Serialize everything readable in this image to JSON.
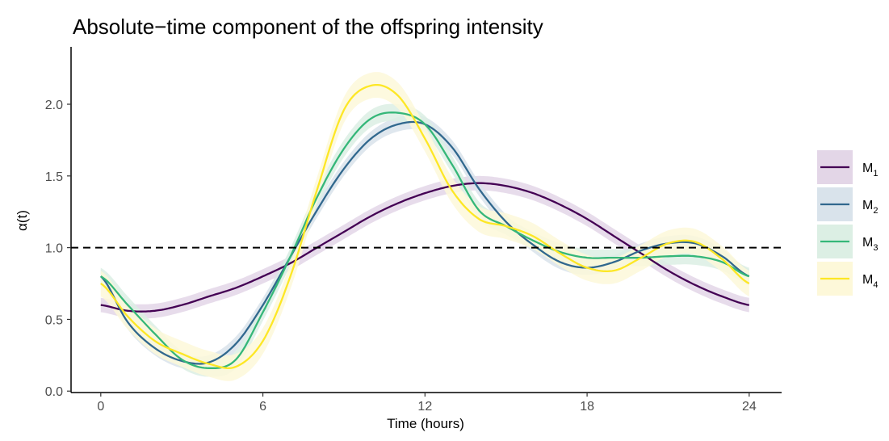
{
  "chart_data": {
    "type": "line",
    "title": "Absolute−time component of the offspring intensity",
    "xlabel": "Time (hours)",
    "ylabel": "α(t)",
    "xlim": [
      -1.1,
      25.2
    ],
    "ylim": [
      -0.01,
      2.4
    ],
    "x_ticks": [
      0,
      6,
      12,
      18,
      24
    ],
    "y_ticks": [
      0.0,
      0.5,
      1.0,
      1.5,
      2.0
    ],
    "y_tick_labels": [
      "0.0",
      "0.5",
      "1.0",
      "1.5",
      "2.0"
    ],
    "reference_line": {
      "y": 1.0,
      "style": "dashed",
      "color": "#000000"
    },
    "grid": false,
    "legend_position": "right",
    "series": [
      {
        "name": "M1",
        "label_main": "M",
        "label_sub": "1",
        "color": "#440154",
        "band_color": "#e3d6e7",
        "x": [
          0,
          1,
          2,
          3,
          4,
          5,
          6,
          7,
          8,
          9,
          10,
          11,
          12,
          13,
          14,
          15,
          16,
          17,
          18,
          19,
          20,
          21,
          22,
          23,
          24
        ],
        "y": [
          0.6,
          0.56,
          0.56,
          0.6,
          0.66,
          0.72,
          0.8,
          0.89,
          1.0,
          1.11,
          1.22,
          1.31,
          1.38,
          1.43,
          1.45,
          1.43,
          1.38,
          1.3,
          1.2,
          1.08,
          0.96,
          0.84,
          0.74,
          0.66,
          0.6
        ],
        "band": 0.05
      },
      {
        "name": "M2",
        "label_main": "M",
        "label_sub": "2",
        "color": "#31688e",
        "band_color": "#d9e3eb",
        "x": [
          0,
          1,
          2,
          3,
          4,
          5,
          6,
          7,
          8,
          9,
          10,
          11,
          12,
          13,
          14,
          15,
          16,
          17,
          18,
          19,
          20,
          21,
          22,
          23,
          24
        ],
        "y": [
          0.8,
          0.48,
          0.3,
          0.21,
          0.2,
          0.33,
          0.6,
          0.93,
          1.26,
          1.55,
          1.76,
          1.86,
          1.86,
          1.7,
          1.41,
          1.18,
          1.02,
          0.9,
          0.86,
          0.9,
          0.98,
          1.03,
          1.03,
          0.94,
          0.8
        ],
        "band": 0.05
      },
      {
        "name": "M3",
        "label_main": "M",
        "label_sub": "3",
        "color": "#35b779",
        "band_color": "#dcefe4",
        "x": [
          0,
          1,
          2,
          3,
          4,
          5,
          6,
          7,
          8,
          9,
          10,
          11,
          12,
          13,
          14,
          15,
          16,
          17,
          18,
          19,
          20,
          21,
          22,
          23,
          24
        ],
        "y": [
          0.8,
          0.6,
          0.4,
          0.22,
          0.16,
          0.22,
          0.55,
          0.93,
          1.35,
          1.69,
          1.9,
          1.94,
          1.86,
          1.58,
          1.26,
          1.15,
          1.05,
          0.97,
          0.93,
          0.93,
          0.93,
          0.94,
          0.94,
          0.9,
          0.8
        ],
        "band": 0.06
      },
      {
        "name": "M4",
        "label_main": "M",
        "label_sub": "4",
        "color": "#fde725",
        "band_color": "#fdf8d9",
        "x": [
          0,
          1,
          2,
          3,
          4,
          5,
          6,
          7,
          8,
          9,
          10,
          11,
          12,
          13,
          14,
          15,
          16,
          17,
          18,
          19,
          20,
          21,
          22,
          23,
          24
        ],
        "y": [
          0.75,
          0.52,
          0.35,
          0.26,
          0.19,
          0.17,
          0.35,
          0.79,
          1.4,
          1.96,
          2.13,
          2.06,
          1.76,
          1.4,
          1.2,
          1.15,
          1.08,
          0.96,
          0.86,
          0.84,
          0.93,
          1.03,
          1.04,
          0.92,
          0.75
        ],
        "band": 0.09
      }
    ]
  }
}
